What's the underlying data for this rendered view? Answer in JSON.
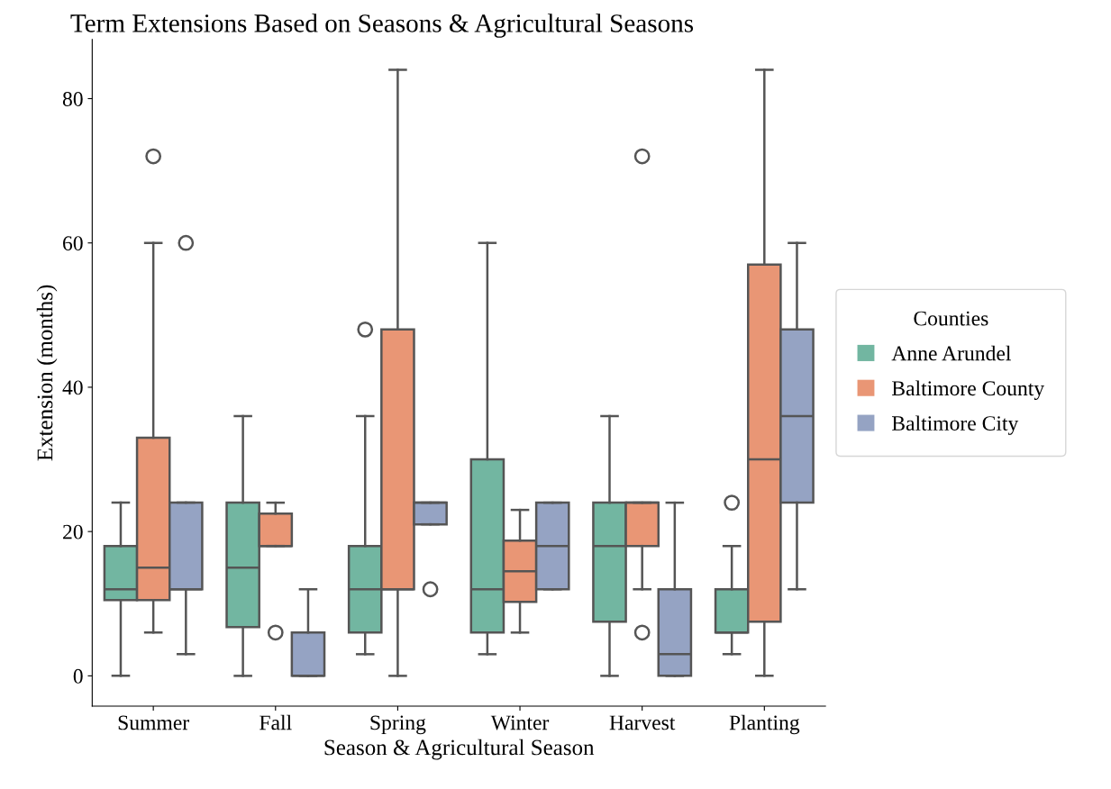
{
  "chart_data": {
    "type": "box",
    "title": "Term Extensions Based on Seasons & Agricultural Seasons",
    "xlabel": "Season & Agricultural Season",
    "ylabel": "Extension (months)",
    "legend_title": "Counties",
    "legend": "right",
    "grid": false,
    "ylim": [
      -4.2,
      88.2
    ],
    "yticks": [
      0,
      20,
      40,
      60,
      80
    ],
    "categories": [
      "Summer",
      "Fall",
      "Spring",
      "Winter",
      "Harvest",
      "Planting"
    ],
    "series": [
      {
        "name": "Anne Arundel",
        "color": "#72b6a1",
        "boxes": [
          {
            "low": 0,
            "q1": 10.5,
            "median": 12,
            "q3": 18,
            "high": 24
          },
          {
            "low": 0,
            "q1": 6.75,
            "median": 15,
            "q3": 24,
            "high": 36
          },
          {
            "low": 3,
            "q1": 6,
            "median": 12,
            "q3": 18,
            "high": 36,
            "outliers": [
              48
            ]
          },
          {
            "low": 3,
            "q1": 6,
            "median": 12,
            "q3": 30,
            "high": 60
          },
          {
            "low": 0,
            "q1": 7.5,
            "median": 18,
            "q3": 24,
            "high": 36
          },
          {
            "low": 3,
            "q1": 6,
            "median": 6,
            "q3": 12,
            "high": 18,
            "outliers": [
              24
            ]
          }
        ]
      },
      {
        "name": "Baltimore County",
        "color": "#e99675",
        "boxes": [
          {
            "low": 6,
            "q1": 10.5,
            "median": 15,
            "q3": 33,
            "high": 60,
            "outliers": [
              72
            ]
          },
          {
            "low": 18,
            "q1": 18,
            "median": 18,
            "q3": 22.5,
            "high": 24,
            "outliers": [
              6
            ]
          },
          {
            "low": 0,
            "q1": 12,
            "median": 12,
            "q3": 48,
            "high": 84
          },
          {
            "low": 6,
            "q1": 10.25,
            "median": 14.5,
            "q3": 18.75,
            "high": 23
          },
          {
            "low": 12,
            "q1": 18,
            "median": 24,
            "q3": 24,
            "high": 24,
            "outliers": [
              6,
              72
            ]
          },
          {
            "low": 0,
            "q1": 7.5,
            "median": 30,
            "q3": 57,
            "high": 84
          }
        ]
      },
      {
        "name": "Baltimore City",
        "color": "#95a3c3",
        "boxes": [
          {
            "low": 3,
            "q1": 12,
            "median": 12,
            "q3": 24,
            "high": 24,
            "outliers": [
              60
            ]
          },
          {
            "low": 0,
            "q1": 0,
            "median": 0,
            "q3": 6,
            "high": 12
          },
          {
            "low": 21,
            "q1": 21,
            "median": 24,
            "q3": 24,
            "high": 24,
            "outliers": [
              12
            ]
          },
          {
            "low": 12,
            "q1": 12,
            "median": 18,
            "q3": 24,
            "high": 24
          },
          {
            "low": 0,
            "q1": 0,
            "median": 3,
            "q3": 12,
            "high": 24
          },
          {
            "low": 12,
            "q1": 24,
            "median": 36,
            "q3": 48,
            "high": 60
          }
        ]
      }
    ]
  }
}
